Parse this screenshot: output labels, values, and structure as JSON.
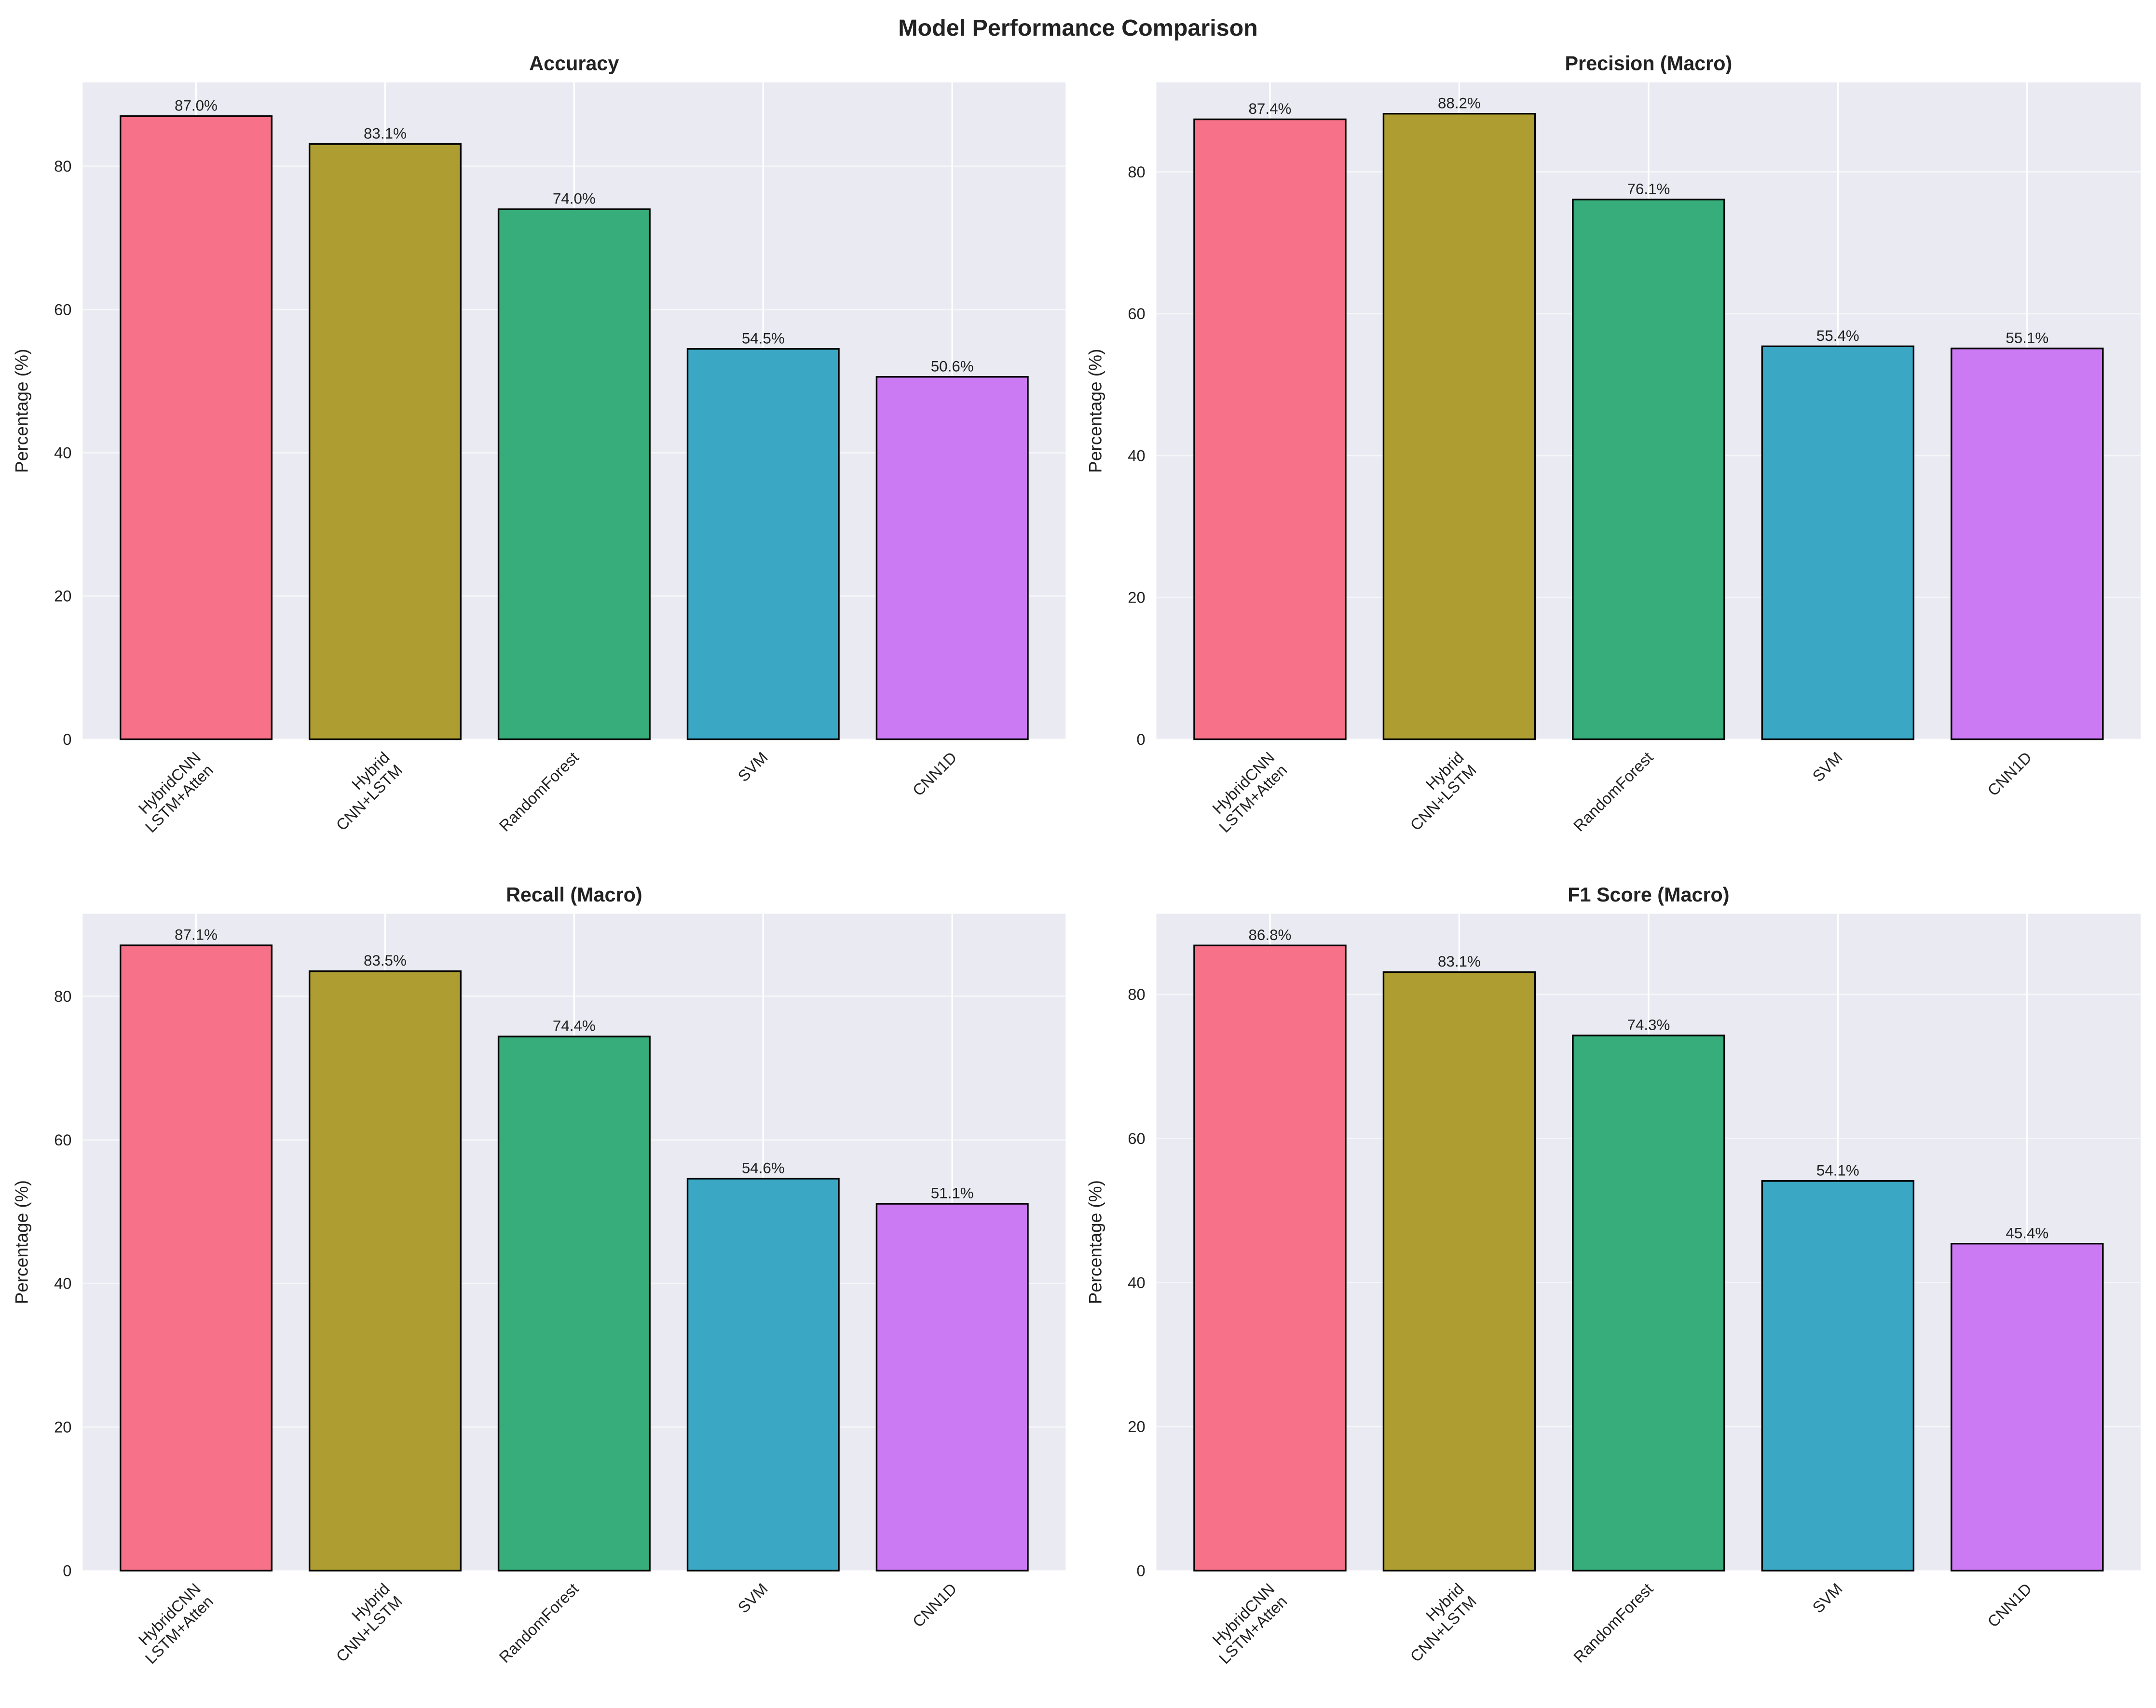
{
  "title": "Model Performance Comparison",
  "colors": [
    "#f77189",
    "#ae9d31",
    "#36ad7a",
    "#3aa8c5",
    "#cc7af4"
  ],
  "background": "#eaeaf2",
  "chart_data": [
    {
      "type": "bar",
      "title": "Accuracy",
      "ylabel": "Percentage (%)",
      "xlabel": "",
      "categories": [
        "HybridCNN\nLSTM+Atten",
        "Hybrid\nCNN+LSTM",
        "RandomForest",
        "SVM",
        "CNN1D"
      ],
      "values": [
        87.0,
        83.1,
        74.0,
        54.5,
        50.6
      ],
      "value_labels": [
        "87.0%",
        "83.1%",
        "74.0%",
        "54.5%",
        "50.6%"
      ],
      "yticks": [
        0,
        20,
        40,
        60,
        80
      ],
      "ylim": [
        0,
        91.7
      ],
      "grid": true
    },
    {
      "type": "bar",
      "title": "Precision (Macro)",
      "ylabel": "Percentage (%)",
      "xlabel": "",
      "categories": [
        "HybridCNN\nLSTM+Atten",
        "Hybrid\nCNN+LSTM",
        "RandomForest",
        "SVM",
        "CNN1D"
      ],
      "values": [
        87.4,
        88.2,
        76.1,
        55.4,
        55.1
      ],
      "value_labels": [
        "87.4%",
        "88.2%",
        "76.1%",
        "55.4%",
        "55.1%"
      ],
      "yticks": [
        0,
        20,
        40,
        60,
        80
      ],
      "ylim": [
        0,
        92.6
      ],
      "grid": true
    },
    {
      "type": "bar",
      "title": "Recall (Macro)",
      "ylabel": "Percentage (%)",
      "xlabel": "",
      "categories": [
        "HybridCNN\nLSTM+Atten",
        "Hybrid\nCNN+LSTM",
        "RandomForest",
        "SVM",
        "CNN1D"
      ],
      "values": [
        87.1,
        83.5,
        74.4,
        54.6,
        51.1
      ],
      "value_labels": [
        "87.1%",
        "83.5%",
        "74.4%",
        "54.6%",
        "51.1%"
      ],
      "yticks": [
        0,
        20,
        40,
        60,
        80
      ],
      "ylim": [
        0,
        91.5
      ],
      "grid": true
    },
    {
      "type": "bar",
      "title": "F1 Score (Macro)",
      "ylabel": "Percentage (%)",
      "xlabel": "",
      "categories": [
        "HybridCNN\nLSTM+Atten",
        "Hybrid\nCNN+LSTM",
        "RandomForest",
        "SVM",
        "CNN1D"
      ],
      "values": [
        86.8,
        83.1,
        74.3,
        54.1,
        45.4
      ],
      "value_labels": [
        "86.8%",
        "83.1%",
        "74.3%",
        "54.1%",
        "45.4%"
      ],
      "yticks": [
        0,
        20,
        40,
        60,
        80
      ],
      "ylim": [
        0,
        91.2
      ],
      "grid": true
    }
  ]
}
